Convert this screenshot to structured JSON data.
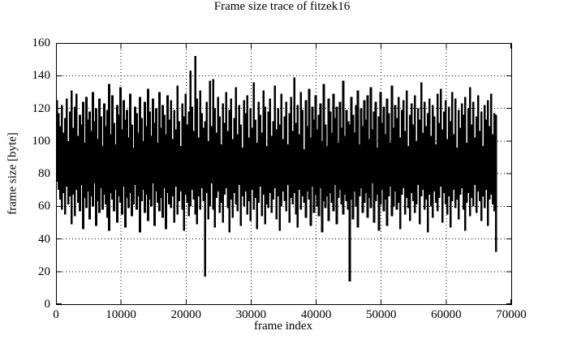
{
  "figure": {
    "background_color": "#ffffff",
    "foreground_color": "#000000"
  },
  "chart_data": {
    "type": "line",
    "title": "Frame size trace of fitzek16",
    "xlabel": "frame index",
    "ylabel": "frame size [byte]",
    "xlim": [
      0,
      70000
    ],
    "ylim": [
      0,
      160
    ],
    "xticks": [
      0,
      10000,
      20000,
      30000,
      40000,
      50000,
      60000,
      70000
    ],
    "yticks": [
      0,
      20,
      40,
      60,
      80,
      100,
      120,
      140,
      160
    ],
    "grid": "dotted",
    "legend": "none",
    "line_color": "#000000",
    "representation": "min-max envelope of the frame-size trace, one [min,max] pair per bucket of frames",
    "bucket_size_frames": 250,
    "x_start": 0,
    "x_end": 67750,
    "notable_points": [
      {
        "frame": 21300,
        "value": 152,
        "kind": "tallest spike"
      },
      {
        "frame": 22800,
        "value": 17,
        "kind": "deep dip"
      },
      {
        "frame": 45000,
        "value": 14,
        "kind": "deepest dip"
      },
      {
        "frame": 67600,
        "value": 32,
        "kind": "final dip at end of trace"
      }
    ],
    "envelope": [
      [
        75,
        125
      ],
      [
        70,
        117
      ],
      [
        64,
        109
      ],
      [
        58,
        122
      ],
      [
        68,
        105
      ],
      [
        55,
        114
      ],
      [
        72,
        126
      ],
      [
        61,
        100
      ],
      [
        66,
        118
      ],
      [
        49,
        131
      ],
      [
        67,
        108
      ],
      [
        54,
        121
      ],
      [
        70,
        129
      ],
      [
        62,
        103
      ],
      [
        57,
        116
      ],
      [
        73,
        110
      ],
      [
        46,
        124
      ],
      [
        65,
        99
      ],
      [
        59,
        127
      ],
      [
        69,
        113
      ],
      [
        52,
        118
      ],
      [
        66,
        106
      ],
      [
        60,
        130
      ],
      [
        74,
        112
      ],
      [
        48,
        120
      ],
      [
        63,
        101
      ],
      [
        56,
        126
      ],
      [
        71,
        115
      ],
      [
        58,
        97
      ],
      [
        67,
        123
      ],
      [
        61,
        109
      ],
      [
        53,
        119
      ],
      [
        45,
        135
      ],
      [
        68,
        104
      ],
      [
        64,
        128
      ],
      [
        57,
        111
      ],
      [
        70,
        98
      ],
      [
        50,
        122
      ],
      [
        66,
        116
      ],
      [
        62,
        133
      ],
      [
        55,
        107
      ],
      [
        72,
        125
      ],
      [
        47,
        113
      ],
      [
        65,
        119
      ],
      [
        59,
        102
      ],
      [
        68,
        129
      ],
      [
        54,
        110
      ],
      [
        61,
        96
      ],
      [
        73,
        121
      ],
      [
        58,
        117
      ],
      [
        66,
        105
      ],
      [
        44,
        127
      ],
      [
        63,
        114
      ],
      [
        70,
        100
      ],
      [
        56,
        124
      ],
      [
        67,
        109
      ],
      [
        51,
        132
      ],
      [
        64,
        118
      ],
      [
        60,
        103
      ],
      [
        74,
        126
      ],
      [
        48,
        111
      ],
      [
        69,
        120
      ],
      [
        62,
        99
      ],
      [
        57,
        130
      ],
      [
        65,
        108
      ],
      [
        53,
        122
      ],
      [
        71,
        116
      ],
      [
        46,
        104
      ],
      [
        68,
        128
      ],
      [
        61,
        113
      ],
      [
        59,
        125
      ],
      [
        66,
        101
      ],
      [
        50,
        119
      ],
      [
        72,
        107
      ],
      [
        55,
        134
      ],
      [
        63,
        112
      ],
      [
        69,
        97
      ],
      [
        58,
        123
      ],
      [
        45,
        115
      ],
      [
        67,
        129
      ],
      [
        62,
        110
      ],
      [
        54,
        118
      ],
      [
        60,
        143
      ],
      [
        70,
        121
      ],
      [
        64,
        106
      ],
      [
        55,
        152
      ],
      [
        49,
        126
      ],
      [
        66,
        102
      ],
      [
        58,
        131
      ],
      [
        71,
        117
      ],
      [
        63,
        108
      ],
      [
        17,
        112
      ],
      [
        68,
        124
      ],
      [
        52,
        100
      ],
      [
        60,
        137
      ],
      [
        74,
        109
      ],
      [
        58,
        138
      ],
      [
        47,
        120
      ],
      [
        65,
        105
      ],
      [
        69,
        127
      ],
      [
        56,
        115
      ],
      [
        62,
        98
      ],
      [
        50,
        123
      ],
      [
        67,
        111
      ],
      [
        71,
        130
      ],
      [
        59,
        106
      ],
      [
        44,
        119
      ],
      [
        64,
        126
      ],
      [
        53,
        101
      ],
      [
        68,
        114
      ],
      [
        61,
        133
      ],
      [
        57,
        104
      ],
      [
        73,
        122
      ],
      [
        48,
        110
      ],
      [
        66,
        96
      ],
      [
        60,
        125
      ],
      [
        69,
        117
      ],
      [
        55,
        128
      ],
      [
        63,
        102
      ],
      [
        51,
        120
      ],
      [
        70,
        108
      ],
      [
        58,
        136
      ],
      [
        65,
        113
      ],
      [
        46,
        99
      ],
      [
        62,
        124
      ],
      [
        72,
        116
      ],
      [
        54,
        105
      ],
      [
        67,
        131
      ],
      [
        49,
        121
      ],
      [
        61,
        97
      ],
      [
        59,
        118
      ],
      [
        68,
        126
      ],
      [
        56,
        103
      ],
      [
        64,
        112
      ],
      [
        71,
        134
      ],
      [
        52,
        107
      ],
      [
        66,
        120
      ],
      [
        45,
        110
      ],
      [
        60,
        129
      ],
      [
        69,
        101
      ],
      [
        63,
        115
      ],
      [
        57,
        124
      ],
      [
        73,
        98
      ],
      [
        50,
        117
      ],
      [
        65,
        127
      ],
      [
        61,
        106
      ],
      [
        68,
        139
      ],
      [
        55,
        111
      ],
      [
        47,
        122
      ],
      [
        70,
        104
      ],
      [
        58,
        130
      ],
      [
        66,
        119
      ],
      [
        62,
        95
      ],
      [
        53,
        125
      ],
      [
        69,
        109
      ],
      [
        64,
        132
      ],
      [
        48,
        102
      ],
      [
        72,
        121
      ],
      [
        56,
        113
      ],
      [
        67,
        128
      ],
      [
        60,
        107
      ],
      [
        54,
        116
      ],
      [
        71,
        123
      ],
      [
        44,
        100
      ],
      [
        63,
        135
      ],
      [
        59,
        110
      ],
      [
        66,
        97
      ],
      [
        51,
        126
      ],
      [
        68,
        118
      ],
      [
        62,
        105
      ],
      [
        57,
        129
      ],
      [
        73,
        114
      ],
      [
        49,
        121
      ],
      [
        65,
        99
      ],
      [
        70,
        124
      ],
      [
        61,
        108
      ],
      [
        55,
        137
      ],
      [
        67,
        103
      ],
      [
        63,
        119
      ],
      [
        58,
        112
      ],
      [
        14,
        110
      ],
      [
        64,
        127
      ],
      [
        52,
        116
      ],
      [
        69,
        105
      ],
      [
        60,
        122
      ],
      [
        47,
        131
      ],
      [
        66,
        98
      ],
      [
        71,
        120
      ],
      [
        56,
        109
      ],
      [
        62,
        125
      ],
      [
        68,
        113
      ],
      [
        53,
        128
      ],
      [
        65,
        101
      ],
      [
        59,
        133
      ],
      [
        74,
        107
      ],
      [
        50,
        118
      ],
      [
        63,
        124
      ],
      [
        67,
        96
      ],
      [
        45,
        115
      ],
      [
        61,
        130
      ],
      [
        70,
        111
      ],
      [
        57,
        121
      ],
      [
        64,
        104
      ],
      [
        48,
        126
      ],
      [
        66,
        117
      ],
      [
        72,
        99
      ],
      [
        54,
        134
      ],
      [
        60,
        108
      ],
      [
        69,
        122
      ],
      [
        58,
        114
      ],
      [
        62,
        127
      ],
      [
        46,
        102
      ],
      [
        67,
        119
      ],
      [
        71,
        125
      ],
      [
        55,
        106
      ],
      [
        65,
        131
      ],
      [
        59,
        97
      ],
      [
        51,
        116
      ],
      [
        68,
        123
      ],
      [
        63,
        110
      ],
      [
        56,
        128
      ],
      [
        61,
        100
      ],
      [
        73,
        120
      ],
      [
        49,
        113
      ],
      [
        66,
        136
      ],
      [
        70,
        105
      ],
      [
        58,
        124
      ],
      [
        64,
        109
      ],
      [
        44,
        117
      ],
      [
        67,
        126
      ],
      [
        60,
        103
      ],
      [
        53,
        122
      ],
      [
        69,
        115
      ],
      [
        62,
        98
      ],
      [
        57,
        129
      ],
      [
        65,
        111
      ],
      [
        72,
        132
      ],
      [
        50,
        107
      ],
      [
        68,
        118
      ],
      [
        61,
        125
      ],
      [
        55,
        101
      ],
      [
        66,
        121
      ],
      [
        47,
        112
      ],
      [
        63,
        130
      ],
      [
        70,
        104
      ],
      [
        59,
        126
      ],
      [
        64,
        96
      ],
      [
        52,
        119
      ],
      [
        67,
        108
      ],
      [
        71,
        123
      ],
      [
        58,
        116
      ],
      [
        45,
        127
      ],
      [
        62,
        99
      ],
      [
        68,
        120
      ],
      [
        54,
        133
      ],
      [
        65,
        110
      ],
      [
        60,
        124
      ],
      [
        73,
        102
      ],
      [
        56,
        115
      ],
      [
        69,
        128
      ],
      [
        63,
        106
      ],
      [
        51,
        118
      ],
      [
        66,
        97
      ],
      [
        59,
        122
      ],
      [
        70,
        113
      ],
      [
        48,
        125
      ],
      [
        64,
        109
      ],
      [
        67,
        129
      ],
      [
        61,
        104
      ],
      [
        57,
        117
      ],
      [
        32,
        116
      ]
    ]
  }
}
